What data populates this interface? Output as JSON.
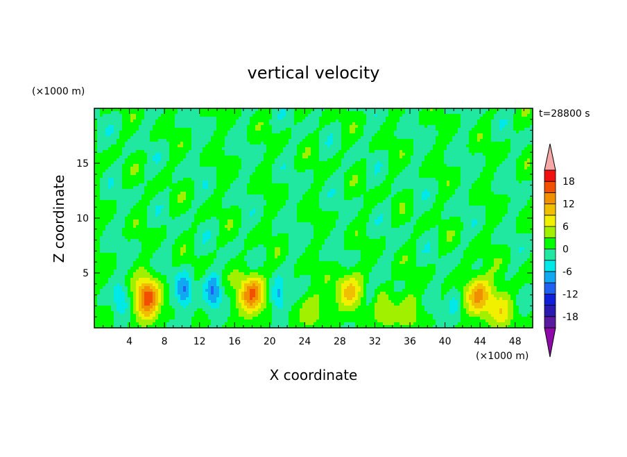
{
  "chart_data": {
    "type": "heatmap",
    "title": "vertical velocity",
    "xlabel": "X coordinate",
    "ylabel": "Z coordinate",
    "x_unit": "(×1000 m)",
    "y_unit": "(×1000 m)",
    "time_label": "t=28800 s",
    "xlim": [
      0,
      50
    ],
    "ylim": [
      0,
      20
    ],
    "x_ticks": [
      4,
      8,
      12,
      16,
      20,
      24,
      28,
      32,
      36,
      40,
      44,
      48
    ],
    "y_ticks": [
      5,
      10,
      15
    ],
    "colorbar": {
      "levels": [
        -21,
        -18,
        -15,
        -12,
        -9,
        -6,
        -3,
        0,
        3,
        6,
        9,
        12,
        15,
        18,
        21
      ],
      "tick_labels": [
        18,
        12,
        6,
        0,
        -6,
        -12,
        -18
      ],
      "colors": [
        "#8e0aa8",
        "#5a1aa0",
        "#2a1ab0",
        "#1020d8",
        "#2060f0",
        "#10a8f0",
        "#00e8e8",
        "#20e8a0",
        "#00ff00",
        "#a0f000",
        "#f0f000",
        "#f0c000",
        "#f09000",
        "#f05000",
        "#f01010",
        "#f4a8a8"
      ],
      "extend": "both"
    },
    "updrafts": [
      {
        "x": 6.0,
        "z": 2.6,
        "peak": 16
      },
      {
        "x": 18.0,
        "z": 3.0,
        "peak": 15
      },
      {
        "x": 29.0,
        "z": 3.2,
        "peak": 10
      },
      {
        "x": 43.8,
        "z": 3.0,
        "peak": 13
      },
      {
        "x": 46.5,
        "z": 1.6,
        "peak": 7
      },
      {
        "x": 33.0,
        "z": 1.6,
        "peak": 6
      },
      {
        "x": 36.0,
        "z": 1.6,
        "peak": 4
      },
      {
        "x": 24.6,
        "z": 1.6,
        "peak": 5
      }
    ],
    "downdrafts": [
      {
        "x": 10.3,
        "z": 3.3,
        "peak": -10
      },
      {
        "x": 13.6,
        "z": 3.3,
        "peak": -8
      },
      {
        "x": 21.0,
        "z": 2.8,
        "peak": -8
      },
      {
        "x": 3.0,
        "z": 2.5,
        "peak": -5
      },
      {
        "x": 31.5,
        "z": 2.5,
        "peak": -4
      },
      {
        "x": 41.0,
        "z": 2.5,
        "peak": -5
      }
    ]
  }
}
